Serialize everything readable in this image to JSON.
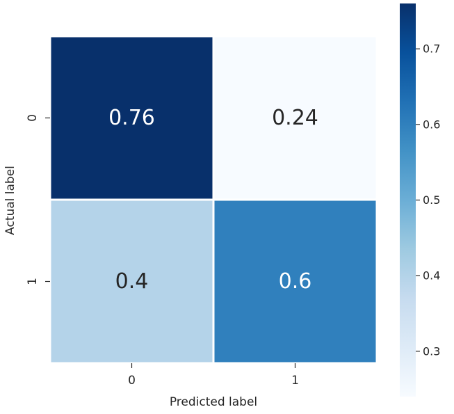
{
  "chart_data": {
    "type": "heatmap",
    "title": "",
    "xlabel": "Predicted label",
    "ylabel": "Actual label",
    "x_categories": [
      "0",
      "1"
    ],
    "y_categories": [
      "0",
      "1"
    ],
    "values": [
      [
        0.76,
        0.24
      ],
      [
        0.4,
        0.6
      ]
    ],
    "cell_labels": [
      [
        "0.76",
        "0.24"
      ],
      [
        "0.4",
        "0.6"
      ]
    ],
    "colormap": "Blues",
    "colorbar": {
      "vmin": 0.24,
      "vmax": 0.76,
      "ticks": [
        0.3,
        0.4,
        0.5,
        0.6,
        0.7
      ],
      "tick_labels": [
        "0.3",
        "0.4",
        "0.5",
        "0.6",
        "0.7"
      ]
    },
    "grid": false,
    "cell_border_color": "#ffffff"
  }
}
